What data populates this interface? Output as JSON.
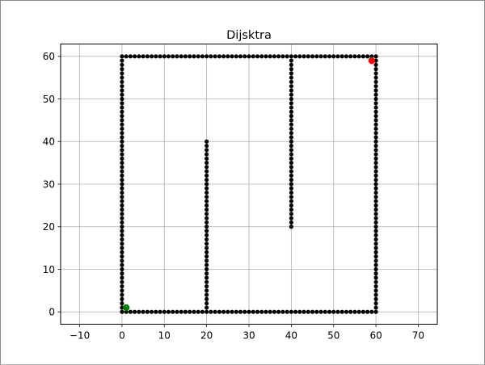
{
  "chart_data": {
    "type": "scatter",
    "title": "Dijsktra",
    "xlabel": "",
    "ylabel": "",
    "xlim": [
      -14.5,
      74.5
    ],
    "ylim": [
      -2.9,
      62.9
    ],
    "xticks": [
      -10,
      0,
      10,
      20,
      30,
      40,
      50,
      60,
      70
    ],
    "yticks": [
      0,
      10,
      20,
      30,
      40,
      50,
      60
    ],
    "grid": true,
    "colors": {
      "obstacle": "#000000",
      "start": "#008000",
      "goal": "#ff0000",
      "grid": "#b0b0b0",
      "axes": "#000000"
    },
    "obstacle_segments": [
      {
        "from": [
          0,
          0
        ],
        "to": [
          60,
          0
        ]
      },
      {
        "from": [
          60,
          0
        ],
        "to": [
          60,
          60
        ]
      },
      {
        "from": [
          0,
          60
        ],
        "to": [
          60,
          60
        ]
      },
      {
        "from": [
          0,
          0
        ],
        "to": [
          0,
          60
        ]
      },
      {
        "from": [
          20,
          0
        ],
        "to": [
          20,
          40
        ]
      },
      {
        "from": [
          40,
          20
        ],
        "to": [
          40,
          60
        ]
      }
    ],
    "start": {
      "x": 1,
      "y": 1
    },
    "goal": {
      "x": 59,
      "y": 59
    }
  }
}
